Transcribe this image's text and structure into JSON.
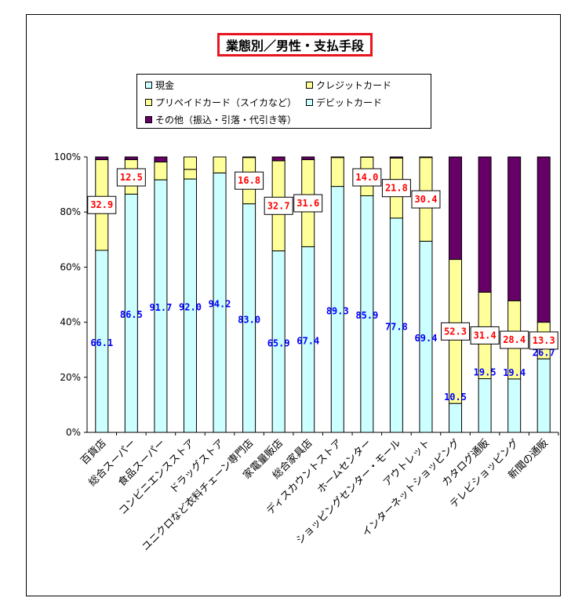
{
  "colors": {
    "cash": "#ccffff",
    "credit": "#ffff99",
    "prepaid": "#ffff99",
    "debit": "#ccffff",
    "other": "#660066",
    "cash_label": "#0000ff",
    "credit_label": "#ff0000"
  },
  "legend": [
    {
      "label": "現金",
      "color_key": "cash"
    },
    {
      "label": "クレジットカード",
      "color_key": "credit"
    },
    {
      "label": "プリペイドカード（スイカなど）",
      "color_key": "prepaid"
    },
    {
      "label": "デビットカード",
      "color_key": "debit"
    },
    {
      "label": "その他（振込・引落・代引き等）",
      "color_key": "other"
    }
  ],
  "chart_data": {
    "type": "bar",
    "stacked": true,
    "title": "業態別／男性・支払手段",
    "ylim": [
      0,
      100
    ],
    "yticks": [
      "0%",
      "20%",
      "40%",
      "60%",
      "80%",
      "100%"
    ],
    "categories": [
      "百貨店",
      "総合スーパー",
      "食品スーパー",
      "コンビニエンスストア",
      "ドラッグストア",
      "ユニクロなど衣料チェーン専門店",
      "家電量販店",
      "総合家具店",
      "ディスカウントストア",
      "ホームセンター",
      "ショッピングセンター・モール",
      "アウトレット",
      "インターネットショッピング",
      "カタログ通販",
      "テレビショッピング",
      "新聞の通販"
    ],
    "series": [
      {
        "name": "現金",
        "values": [
          66.1,
          86.5,
          91.7,
          92.0,
          94.2,
          83.0,
          65.9,
          67.4,
          89.3,
          85.9,
          77.8,
          69.4,
          10.5,
          19.5,
          19.4,
          26.7
        ]
      },
      {
        "name": "クレジットカード",
        "values": [
          32.9,
          12.5,
          6.5,
          3.5,
          0.0,
          16.8,
          32.7,
          31.6,
          10.5,
          14.0,
          21.8,
          30.4,
          52.3,
          31.4,
          28.4,
          13.3
        ]
      },
      {
        "name": "プリペイドカード（スイカなど）",
        "values": [
          0.0,
          0.0,
          0.0,
          4.5,
          5.8,
          0.0,
          0.0,
          0.0,
          0.0,
          0.0,
          0.0,
          0.0,
          0.0,
          0.0,
          0.0,
          0.0
        ]
      },
      {
        "name": "デビットカード",
        "values": [
          0,
          0,
          0,
          0,
          0,
          0,
          0,
          0,
          0,
          0,
          0,
          0,
          0,
          0,
          0,
          0
        ]
      },
      {
        "name": "その他（振込・引落・代引き等）",
        "values": [
          1.0,
          1.0,
          1.8,
          0.0,
          0.0,
          0.2,
          1.4,
          1.0,
          0.2,
          0.1,
          0.4,
          0.2,
          37.2,
          49.1,
          52.2,
          60.0
        ]
      }
    ],
    "cash_labels": [
      "66.1",
      "86.5",
      "91.7",
      "92.0",
      "94.2",
      "83.0",
      "65.9",
      "67.4",
      "89.3",
      "85.9",
      "77.8",
      "69.4",
      "10.5",
      "19.5",
      "19.4",
      "26.7"
    ],
    "credit_labels": [
      "32.9",
      "12.5",
      "",
      "",
      "",
      "16.8",
      "32.7",
      "31.6",
      "",
      "14.0",
      "21.8",
      "30.4",
      "52.3",
      "31.4",
      "28.4",
      "13.3"
    ],
    "grid": false,
    "legend_position": "top"
  }
}
